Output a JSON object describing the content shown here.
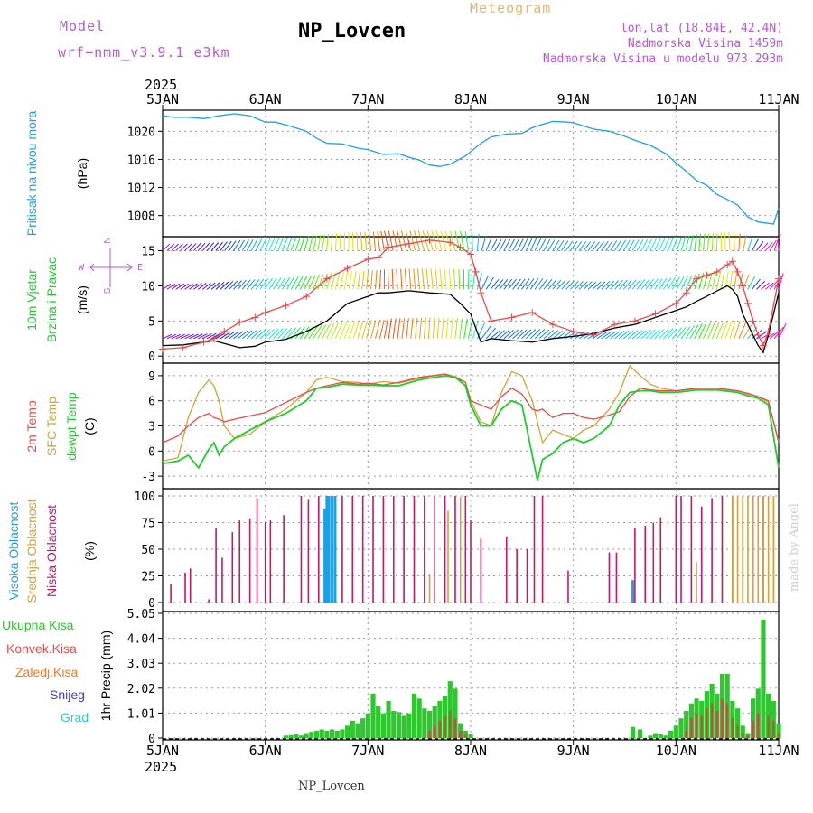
{
  "header": {
    "model_label": "Model",
    "model_name": "wrf−nmm_v3.9.1  e3km",
    "station": "NP_Lovcen",
    "title": "Meteogram",
    "lonlat": "lon,lat (18.84E, 42.4N)",
    "elevation": "Nadmorska Visina 1459m",
    "model_elevation": "Nadmorska Visina u modelu 973.293m"
  },
  "footer": {
    "station": "NP_Lovcen",
    "credit": "made by Angel"
  },
  "time_axis": {
    "year": "2025",
    "ticks": [
      "5JAN",
      "6JAN",
      "7JAN",
      "8JAN",
      "9JAN",
      "10JAN",
      "11JAN"
    ],
    "start_day": 5,
    "days": 6
  },
  "colors": {
    "pressure": "#1e9fe6",
    "speed": "#e84a4a",
    "temp2m": "#e84a4a",
    "sfc": "#d4a236",
    "dewpt": "#1fcd2c",
    "cloud_high": "#1e9fe6",
    "cloud_mid": "#d4a236",
    "cloud_low": "#c4186d",
    "precip_total": "#2fc62f",
    "precip_conv": "#e84a4a",
    "precip_ice": "#f07a2a",
    "precip_snow": "#3a3ae8",
    "precip_grad": "#38c8c8",
    "wind_label": "#1fcd2c",
    "wind_dir": "#b45ad6"
  },
  "chart_data": [
    {
      "type": "line",
      "title": "Pritisak na nivou mora",
      "ylabel": "(hPa)",
      "ylim": [
        1005,
        1023
      ],
      "yticks": [
        "1020",
        "1016",
        "1012",
        "1008"
      ],
      "ytick_values": [
        1020,
        1016,
        1012,
        1008
      ],
      "x_days": [
        0,
        0.1,
        0.25,
        0.4,
        0.55,
        0.7,
        0.85,
        1.0,
        1.1,
        1.25,
        1.4,
        1.5,
        1.6,
        1.75,
        1.9,
        2.0,
        2.15,
        2.3,
        2.4,
        2.5,
        2.6,
        2.7,
        2.8,
        2.95,
        3.1,
        3.2,
        3.35,
        3.5,
        3.6,
        3.7,
        3.8,
        3.95,
        4.0,
        4.2,
        4.35,
        4.5,
        4.6,
        4.75,
        4.9,
        5.0,
        5.1,
        5.2,
        5.3,
        5.4,
        5.5,
        5.6,
        5.7,
        5.8,
        5.95,
        6.0
      ],
      "values": [
        1022.2,
        1022.0,
        1022.0,
        1021.8,
        1022.2,
        1022.5,
        1022.2,
        1021.3,
        1021.3,
        1020.7,
        1020.0,
        1019.0,
        1018.3,
        1018.2,
        1017.6,
        1017.4,
        1016.7,
        1016.8,
        1016.3,
        1015.9,
        1015.2,
        1015.0,
        1015.3,
        1016.5,
        1018.3,
        1019.2,
        1019.6,
        1019.7,
        1020.5,
        1021.0,
        1021.4,
        1021.3,
        1021.2,
        1020.3,
        1020.0,
        1019.3,
        1018.7,
        1018.0,
        1016.8,
        1015.5,
        1014.3,
        1013.0,
        1012.3,
        1011.0,
        1010.3,
        1009.5,
        1007.8,
        1007.1,
        1006.8,
        1009.0
      ]
    },
    {
      "type": "line",
      "title": "10m Vjetar",
      "subtitle": "Brzina i Pravac",
      "ylabel": "(m/s)",
      "ylim": [
        -1,
        17
      ],
      "yticks": [
        "15",
        "10",
        "5",
        "0"
      ],
      "ytick_values": [
        15,
        10,
        5,
        0
      ],
      "direction_legend": [
        "N",
        "S",
        "W",
        "E"
      ],
      "x_days": [
        0,
        0.2,
        0.4,
        0.5,
        0.6,
        0.75,
        0.9,
        1.0,
        1.2,
        1.4,
        1.6,
        1.8,
        2.0,
        2.1,
        2.2,
        2.4,
        2.6,
        2.8,
        2.9,
        3.0,
        3.05,
        3.1,
        3.2,
        3.4,
        3.6,
        3.8,
        4.0,
        4.2,
        4.4,
        4.6,
        4.8,
        5.0,
        5.1,
        5.2,
        5.3,
        5.4,
        5.5,
        5.55,
        5.6,
        5.65,
        5.7,
        5.75,
        5.8,
        5.85,
        5.9,
        6.0
      ],
      "series": [
        {
          "name": "speed",
          "values": [
            1.0,
            1.2,
            2.0,
            2.5,
            3.5,
            4.8,
            5.5,
            6.2,
            7.2,
            8.5,
            11.0,
            12.5,
            13.8,
            14.0,
            15.5,
            16.0,
            16.5,
            16.2,
            15.5,
            14.5,
            12.0,
            9.0,
            5.0,
            5.5,
            6.2,
            4.5,
            3.5,
            3.0,
            4.5,
            5.0,
            6.0,
            7.5,
            9.0,
            11.0,
            11.5,
            12.0,
            13.0,
            13.5,
            12.0,
            10.0,
            7.5,
            5.0,
            3.0,
            1.5,
            3.5,
            11.0
          ]
        },
        {
          "name": "gust",
          "values": [
            1.5,
            1.6,
            2.0,
            2.2,
            1.8,
            1.2,
            1.4,
            2.0,
            2.4,
            3.5,
            5.0,
            7.5,
            8.5,
            9.0,
            9.0,
            9.3,
            9.0,
            8.8,
            7.5,
            6.0,
            4.0,
            2.0,
            2.5,
            2.2,
            2.0,
            2.5,
            2.8,
            3.2,
            4.0,
            4.5,
            5.5,
            6.5,
            7.0,
            7.8,
            8.5,
            9.3,
            10.0,
            9.5,
            8.5,
            6.0,
            4.5,
            3.0,
            1.5,
            0.5,
            3.0,
            9.0
          ]
        }
      ],
      "barb_rows": [
        15,
        9.5,
        2.5
      ],
      "barb_hue": [
        270,
        262,
        255,
        245,
        230,
        210,
        195,
        175,
        150,
        110,
        80,
        60,
        40,
        25,
        15,
        30,
        45,
        60,
        100,
        150,
        190,
        210,
        220,
        215,
        210,
        205,
        200,
        210,
        200,
        190,
        175,
        160,
        150,
        120,
        95,
        80,
        60,
        45,
        30,
        20,
        200,
        230,
        270,
        300,
        330,
        300
      ]
    },
    {
      "type": "line",
      "title": "2m Temp",
      "ylabel": "(C)",
      "ylim": [
        -4.5,
        10.5
      ],
      "yticks": [
        "9",
        "6",
        "3",
        "0",
        "-3"
      ],
      "ytick_values": [
        9,
        6,
        3,
        0,
        -3
      ],
      "x_days": [
        0,
        0.15,
        0.25,
        0.35,
        0.45,
        0.5,
        0.55,
        0.6,
        0.7,
        0.85,
        1.0,
        1.2,
        1.4,
        1.5,
        1.6,
        1.75,
        1.9,
        2.0,
        2.15,
        2.3,
        2.5,
        2.75,
        2.85,
        2.95,
        3.0,
        3.1,
        3.2,
        3.3,
        3.4,
        3.5,
        3.6,
        3.65,
        3.7,
        3.8,
        3.9,
        4.0,
        4.1,
        4.2,
        4.35,
        4.45,
        4.55,
        4.65,
        4.75,
        4.85,
        5.0,
        5.2,
        5.4,
        5.6,
        5.7,
        5.8,
        5.9,
        6.0
      ],
      "series": [
        {
          "name": "2m Temp",
          "values": [
            1.0,
            1.8,
            3.0,
            4.0,
            4.5,
            4.0,
            3.8,
            3.5,
            3.8,
            4.2,
            4.6,
            5.8,
            7.0,
            7.5,
            7.8,
            8.2,
            8.0,
            8.1,
            7.9,
            8.2,
            8.8,
            9.2,
            8.8,
            8.2,
            6.0,
            5.5,
            5.0,
            6.5,
            7.5,
            6.8,
            5.0,
            4.8,
            5.0,
            4.0,
            4.5,
            4.5,
            4.0,
            3.8,
            4.3,
            4.7,
            6.5,
            7.5,
            7.3,
            7.2,
            7.2,
            7.5,
            7.5,
            7.2,
            6.9,
            6.5,
            6.0,
            1.0
          ]
        },
        {
          "name": "SFC Temp",
          "values": [
            -1.2,
            -0.8,
            4.0,
            7.0,
            8.5,
            7.8,
            6.0,
            3.0,
            1.5,
            2.0,
            3.5,
            5.0,
            7.0,
            8.5,
            8.8,
            8.3,
            8.2,
            8.0,
            8.3,
            8.1,
            8.7,
            9.2,
            8.9,
            8.2,
            6.0,
            3.5,
            3.0,
            7.0,
            9.5,
            9.0,
            6.0,
            3.5,
            1.0,
            2.5,
            2.0,
            1.5,
            2.5,
            3.0,
            5.0,
            7.0,
            10.2,
            9.0,
            8.0,
            7.5,
            7.2,
            7.5,
            7.5,
            7.2,
            6.8,
            6.5,
            5.8,
            1.2
          ]
        },
        {
          "name": "dewpt Temp",
          "values": [
            -1.5,
            -1.2,
            -0.5,
            -2.0,
            0.2,
            1.0,
            -0.5,
            0.5,
            1.5,
            2.5,
            3.5,
            4.5,
            6.0,
            7.5,
            7.6,
            8.0,
            7.9,
            7.9,
            7.8,
            7.8,
            8.5,
            9.0,
            8.8,
            7.8,
            5.5,
            3.0,
            3.0,
            5.0,
            6.0,
            5.5,
            -0.5,
            -3.5,
            -1.0,
            -0.3,
            1.0,
            1.5,
            1.0,
            1.5,
            3.0,
            5.5,
            7.0,
            7.2,
            7.2,
            7.0,
            7.0,
            7.3,
            7.3,
            7.0,
            6.6,
            6.3,
            5.5,
            -2.0
          ]
        }
      ]
    },
    {
      "type": "bar",
      "title": "Visoka Oblacnost / Srednja Oblacnost / Niska Oblacnost",
      "ylabel": "(%)",
      "ylim": [
        0,
        100
      ],
      "yticks": [
        "100",
        "75",
        "50",
        "25",
        "0"
      ],
      "ytick_values": [
        100,
        75,
        50,
        25,
        0
      ],
      "series": [
        {
          "name": "Niska Oblacnost",
          "x_days": [
            0.08,
            0.22,
            0.27,
            0.45,
            0.52,
            0.58,
            0.68,
            0.75,
            0.85,
            0.92,
            1.0,
            1.05,
            1.18,
            1.35,
            1.42,
            1.52,
            1.62,
            1.75,
            1.85,
            1.95,
            2.05,
            2.15,
            2.25,
            2.35,
            2.45,
            2.55,
            2.65,
            2.75,
            2.85,
            2.95,
            3.0,
            3.1,
            3.35,
            3.45,
            3.55,
            3.62,
            3.7,
            3.95,
            4.35,
            4.42,
            4.6,
            4.7,
            4.78,
            4.85,
            5.0,
            5.05,
            5.15,
            5.25,
            5.35,
            5.45,
            5.55,
            5.65,
            5.75,
            5.85,
            5.95
          ],
          "values": [
            17,
            28,
            32,
            3,
            70,
            42,
            66,
            77,
            79,
            98,
            75,
            77,
            82,
            100,
            97,
            100,
            100,
            100,
            100,
            100,
            100,
            100,
            100,
            100,
            100,
            100,
            100,
            100,
            100,
            100,
            77,
            60,
            62,
            50,
            50,
            100,
            100,
            30,
            47,
            47,
            70,
            72,
            75,
            80,
            100,
            100,
            100,
            90,
            98,
            100,
            100,
            100,
            100,
            100,
            100
          ]
        },
        {
          "name": "Srednja Oblacnost",
          "x_days": [
            2.6,
            2.78,
            2.9,
            5.2,
            5.55,
            5.6,
            5.65,
            5.7,
            5.75,
            5.8,
            5.85,
            5.9,
            5.95
          ],
          "values": [
            27,
            86,
            99,
            38,
            100,
            100,
            100,
            100,
            100,
            100,
            100,
            100,
            100
          ]
        },
        {
          "name": "Visoka Oblacnost",
          "x_days": [
            1.58,
            1.6,
            1.62,
            1.65,
            1.68,
            4.58
          ],
          "values": [
            88,
            100,
            100,
            100,
            100,
            21
          ]
        }
      ]
    },
    {
      "type": "bar",
      "title": "1hr Precip",
      "ylabel": "(mm)",
      "ylim": [
        0,
        5.05
      ],
      "yticks": [
        "5.05",
        "4.04",
        "3.03",
        "2.02",
        "1.01",
        "0"
      ],
      "ytick_values": [
        5.05,
        4.04,
        3.03,
        2.02,
        1.01,
        0
      ],
      "legend": [
        "Ukupna Kisa",
        "Konvek.Kisa",
        "Zaledj.Kisa",
        "Snijeg",
        "Grad"
      ],
      "x_days": [
        1.2,
        1.25,
        1.3,
        1.35,
        1.4,
        1.45,
        1.5,
        1.55,
        1.6,
        1.65,
        1.7,
        1.75,
        1.8,
        1.85,
        1.9,
        1.95,
        2.0,
        2.05,
        2.1,
        2.15,
        2.2,
        2.25,
        2.3,
        2.35,
        2.4,
        2.45,
        2.5,
        2.55,
        2.6,
        2.65,
        2.7,
        2.75,
        2.8,
        2.85,
        2.9,
        2.95,
        3.0,
        4.58,
        4.65,
        4.75,
        4.8,
        4.85,
        4.9,
        4.95,
        5.0,
        5.05,
        5.1,
        5.15,
        5.2,
        5.25,
        5.3,
        5.35,
        5.4,
        5.45,
        5.5,
        5.55,
        5.6,
        5.65,
        5.7,
        5.75,
        5.8,
        5.85,
        5.9,
        5.95,
        6.0
      ],
      "total": [
        0.1,
        0.12,
        0.15,
        0.1,
        0.2,
        0.25,
        0.3,
        0.35,
        0.3,
        0.35,
        0.3,
        0.35,
        0.5,
        0.7,
        0.6,
        0.8,
        1.0,
        1.8,
        1.3,
        1.0,
        1.5,
        1.1,
        1.05,
        0.9,
        1.0,
        1.8,
        1.6,
        1.2,
        1.1,
        1.3,
        1.5,
        1.7,
        2.3,
        2.0,
        0.6,
        0.3,
        0.15,
        0.45,
        0.35,
        0.1,
        0.2,
        0.15,
        0.1,
        0.3,
        0.5,
        0.8,
        1.1,
        1.4,
        1.6,
        1.5,
        1.9,
        2.2,
        1.8,
        2.6,
        2.6,
        1.5,
        1.2,
        0.5,
        0.2,
        1.6,
        2.0,
        4.8,
        1.8,
        1.5,
        0.6
      ],
      "convective": [
        0,
        0,
        0,
        0,
        0,
        0,
        0,
        0,
        0,
        0,
        0,
        0,
        0,
        0,
        0,
        0,
        0,
        0,
        0,
        0,
        0,
        0,
        0,
        0,
        0,
        0,
        0,
        0,
        0.3,
        0.5,
        0.7,
        0.9,
        1.1,
        0.8,
        0.3,
        0.1,
        0,
        0,
        0,
        0,
        0,
        0,
        0,
        0,
        0,
        0,
        0.3,
        0.8,
        1.0,
        0.9,
        1.2,
        1.4,
        1.1,
        1.6,
        1.4,
        0.8,
        0.5,
        0.2,
        0.1,
        0.7,
        1.0,
        0,
        0.9,
        0.7,
        0.2
      ]
    }
  ]
}
